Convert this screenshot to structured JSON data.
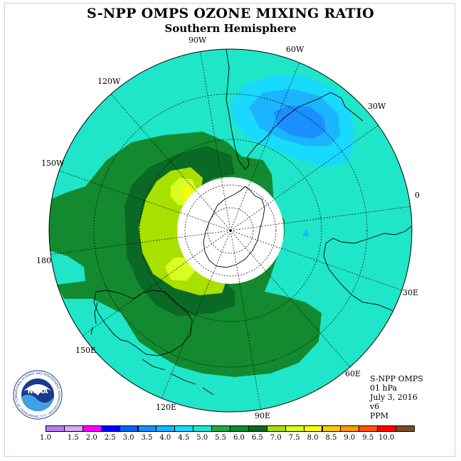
{
  "title": "S-NPP OMPS OZONE MIXING RATIO",
  "subtitle": "Southern Hemisphere",
  "longitude_labels": [
    "90W",
    "60W",
    "30W",
    "0",
    "30E",
    "60E",
    "90E",
    "120E",
    "150E",
    "180",
    "150W",
    "120W"
  ],
  "info": {
    "instrument": "S-NPP OMPS",
    "level": "01 hPa",
    "date": "July 3, 2016",
    "version": "v6",
    "units": "PPM"
  },
  "logo": {
    "name": "NOAA",
    "ring_text": "NATIONAL OCEANIC AND ATMOSPHERIC ADMINISTRATION · U.S. DEPARTMENT OF COMMERCE"
  },
  "colorbar": {
    "labels": [
      "1.0",
      "1.5",
      "2.0",
      "2.5",
      "3.0",
      "3.5",
      "4.0",
      "4.5",
      "5.0",
      "5.5",
      "6.0",
      "6.5",
      "7.0",
      "7.5",
      "8.0",
      "8.5",
      "9.0",
      "9.5",
      "10.0"
    ],
    "colors": [
      "#b87cf2",
      "#d9a8f8",
      "#ff00ff",
      "#0000ff",
      "#0066ff",
      "#1a8fff",
      "#1ab4ff",
      "#19d9ff",
      "#1fe6c8",
      "#22a845",
      "#138a30",
      "#0a6a25",
      "#a8e000",
      "#d8ff20",
      "#ffff00",
      "#ffcc00",
      "#ff9900",
      "#ff5500",
      "#ff0000",
      "#7a4a2a"
    ]
  },
  "colors": {
    "background_field": "#1fe6c8",
    "polar_night": "#ffffff"
  }
}
